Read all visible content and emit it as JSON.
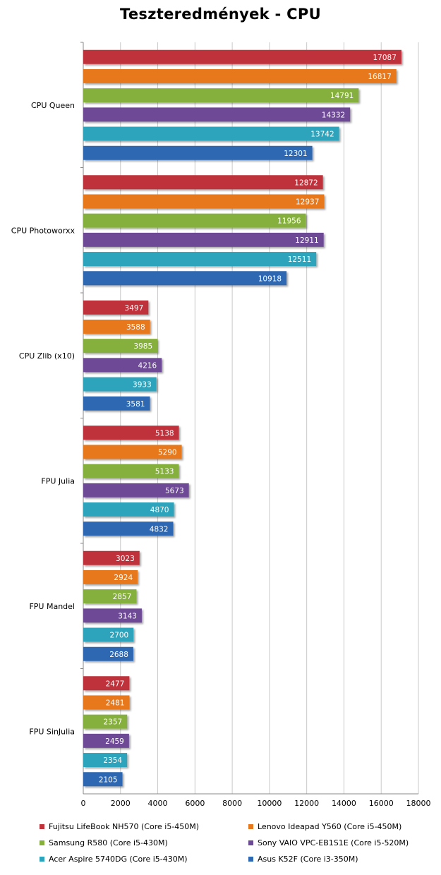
{
  "chart_data": {
    "type": "bar",
    "orientation": "horizontal",
    "title": "Teszteredmények - CPU",
    "categories": [
      "CPU Queen",
      "CPU Photoworxx",
      "CPU Zlib (x10)",
      "FPU Julia",
      "FPU Mandel",
      "FPU SinJulia"
    ],
    "series": [
      {
        "name": "Fujitsu LifeBook NH570 (Core i5-450M)",
        "color": "#c0323a",
        "values": [
          17087,
          12872,
          3497,
          5138,
          3023,
          2477
        ]
      },
      {
        "name": "Lenovo Ideapad Y560 (Core i5-450M)",
        "color": "#e8781e",
        "values": [
          16817,
          12937,
          3588,
          5290,
          2924,
          2481
        ]
      },
      {
        "name": "Samsung R580 (Core i5-430M)",
        "color": "#86b03c",
        "values": [
          14791,
          11956,
          3985,
          5133,
          2857,
          2357
        ]
      },
      {
        "name": "Sony VAIO VPC-EB1S1E (Core i5-520M)",
        "color": "#6d4a96",
        "values": [
          14332,
          12911,
          4216,
          5673,
          3143,
          2459
        ]
      },
      {
        "name": "Acer Aspire 5740DG (Core i5-430M)",
        "color": "#2ea3bc",
        "values": [
          13742,
          12511,
          3933,
          4870,
          2700,
          2354
        ]
      },
      {
        "name": "Asus K52F (Core i3-350M)",
        "color": "#2e67b2",
        "values": [
          12301,
          10918,
          3581,
          4832,
          2688,
          2105
        ]
      }
    ],
    "xlim": [
      0,
      18000
    ],
    "xticks": [
      0,
      2000,
      4000,
      6000,
      8000,
      10000,
      12000,
      14000,
      16000,
      18000
    ],
    "grid": true,
    "legend_position": "bottom",
    "data_labels": true
  }
}
